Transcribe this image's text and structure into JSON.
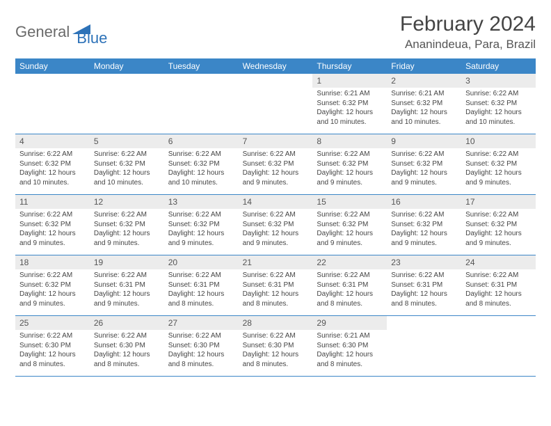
{
  "logo": {
    "part1": "General",
    "part2": "Blue"
  },
  "title": "February 2024",
  "location": "Ananindeua, Para, Brazil",
  "colors": {
    "header_bg": "#3b86c7",
    "header_text": "#ffffff",
    "daynum_bg": "#ececec",
    "border": "#3b86c7",
    "logo_gray": "#6a6a6a",
    "logo_blue": "#2d72b8"
  },
  "weekdays": [
    "Sunday",
    "Monday",
    "Tuesday",
    "Wednesday",
    "Thursday",
    "Friday",
    "Saturday"
  ],
  "weeks": [
    [
      null,
      null,
      null,
      null,
      {
        "n": "1",
        "sr": "Sunrise: 6:21 AM",
        "ss": "Sunset: 6:32 PM",
        "dl": "Daylight: 12 hours and 10 minutes."
      },
      {
        "n": "2",
        "sr": "Sunrise: 6:21 AM",
        "ss": "Sunset: 6:32 PM",
        "dl": "Daylight: 12 hours and 10 minutes."
      },
      {
        "n": "3",
        "sr": "Sunrise: 6:22 AM",
        "ss": "Sunset: 6:32 PM",
        "dl": "Daylight: 12 hours and 10 minutes."
      }
    ],
    [
      {
        "n": "4",
        "sr": "Sunrise: 6:22 AM",
        "ss": "Sunset: 6:32 PM",
        "dl": "Daylight: 12 hours and 10 minutes."
      },
      {
        "n": "5",
        "sr": "Sunrise: 6:22 AM",
        "ss": "Sunset: 6:32 PM",
        "dl": "Daylight: 12 hours and 10 minutes."
      },
      {
        "n": "6",
        "sr": "Sunrise: 6:22 AM",
        "ss": "Sunset: 6:32 PM",
        "dl": "Daylight: 12 hours and 10 minutes."
      },
      {
        "n": "7",
        "sr": "Sunrise: 6:22 AM",
        "ss": "Sunset: 6:32 PM",
        "dl": "Daylight: 12 hours and 9 minutes."
      },
      {
        "n": "8",
        "sr": "Sunrise: 6:22 AM",
        "ss": "Sunset: 6:32 PM",
        "dl": "Daylight: 12 hours and 9 minutes."
      },
      {
        "n": "9",
        "sr": "Sunrise: 6:22 AM",
        "ss": "Sunset: 6:32 PM",
        "dl": "Daylight: 12 hours and 9 minutes."
      },
      {
        "n": "10",
        "sr": "Sunrise: 6:22 AM",
        "ss": "Sunset: 6:32 PM",
        "dl": "Daylight: 12 hours and 9 minutes."
      }
    ],
    [
      {
        "n": "11",
        "sr": "Sunrise: 6:22 AM",
        "ss": "Sunset: 6:32 PM",
        "dl": "Daylight: 12 hours and 9 minutes."
      },
      {
        "n": "12",
        "sr": "Sunrise: 6:22 AM",
        "ss": "Sunset: 6:32 PM",
        "dl": "Daylight: 12 hours and 9 minutes."
      },
      {
        "n": "13",
        "sr": "Sunrise: 6:22 AM",
        "ss": "Sunset: 6:32 PM",
        "dl": "Daylight: 12 hours and 9 minutes."
      },
      {
        "n": "14",
        "sr": "Sunrise: 6:22 AM",
        "ss": "Sunset: 6:32 PM",
        "dl": "Daylight: 12 hours and 9 minutes."
      },
      {
        "n": "15",
        "sr": "Sunrise: 6:22 AM",
        "ss": "Sunset: 6:32 PM",
        "dl": "Daylight: 12 hours and 9 minutes."
      },
      {
        "n": "16",
        "sr": "Sunrise: 6:22 AM",
        "ss": "Sunset: 6:32 PM",
        "dl": "Daylight: 12 hours and 9 minutes."
      },
      {
        "n": "17",
        "sr": "Sunrise: 6:22 AM",
        "ss": "Sunset: 6:32 PM",
        "dl": "Daylight: 12 hours and 9 minutes."
      }
    ],
    [
      {
        "n": "18",
        "sr": "Sunrise: 6:22 AM",
        "ss": "Sunset: 6:32 PM",
        "dl": "Daylight: 12 hours and 9 minutes."
      },
      {
        "n": "19",
        "sr": "Sunrise: 6:22 AM",
        "ss": "Sunset: 6:31 PM",
        "dl": "Daylight: 12 hours and 9 minutes."
      },
      {
        "n": "20",
        "sr": "Sunrise: 6:22 AM",
        "ss": "Sunset: 6:31 PM",
        "dl": "Daylight: 12 hours and 8 minutes."
      },
      {
        "n": "21",
        "sr": "Sunrise: 6:22 AM",
        "ss": "Sunset: 6:31 PM",
        "dl": "Daylight: 12 hours and 8 minutes."
      },
      {
        "n": "22",
        "sr": "Sunrise: 6:22 AM",
        "ss": "Sunset: 6:31 PM",
        "dl": "Daylight: 12 hours and 8 minutes."
      },
      {
        "n": "23",
        "sr": "Sunrise: 6:22 AM",
        "ss": "Sunset: 6:31 PM",
        "dl": "Daylight: 12 hours and 8 minutes."
      },
      {
        "n": "24",
        "sr": "Sunrise: 6:22 AM",
        "ss": "Sunset: 6:31 PM",
        "dl": "Daylight: 12 hours and 8 minutes."
      }
    ],
    [
      {
        "n": "25",
        "sr": "Sunrise: 6:22 AM",
        "ss": "Sunset: 6:30 PM",
        "dl": "Daylight: 12 hours and 8 minutes."
      },
      {
        "n": "26",
        "sr": "Sunrise: 6:22 AM",
        "ss": "Sunset: 6:30 PM",
        "dl": "Daylight: 12 hours and 8 minutes."
      },
      {
        "n": "27",
        "sr": "Sunrise: 6:22 AM",
        "ss": "Sunset: 6:30 PM",
        "dl": "Daylight: 12 hours and 8 minutes."
      },
      {
        "n": "28",
        "sr": "Sunrise: 6:22 AM",
        "ss": "Sunset: 6:30 PM",
        "dl": "Daylight: 12 hours and 8 minutes."
      },
      {
        "n": "29",
        "sr": "Sunrise: 6:21 AM",
        "ss": "Sunset: 6:30 PM",
        "dl": "Daylight: 12 hours and 8 minutes."
      },
      null,
      null
    ]
  ]
}
